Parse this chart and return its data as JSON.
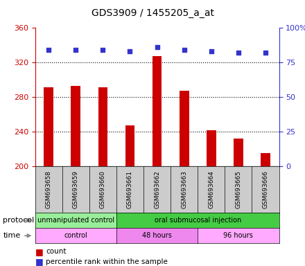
{
  "title": "GDS3909 / 1455205_a_at",
  "samples": [
    "GSM693658",
    "GSM693659",
    "GSM693660",
    "GSM693661",
    "GSM693662",
    "GSM693663",
    "GSM693664",
    "GSM693665",
    "GSM693666"
  ],
  "counts": [
    291,
    293,
    291,
    247,
    327,
    287,
    241,
    232,
    215
  ],
  "percentile_ranks": [
    84,
    84,
    84,
    83,
    86,
    84,
    83,
    82,
    82
  ],
  "ylim_left": [
    200,
    360
  ],
  "ylim_right": [
    0,
    100
  ],
  "yticks_left": [
    200,
    240,
    280,
    320,
    360
  ],
  "yticks_right": [
    0,
    25,
    50,
    75,
    100
  ],
  "bar_color": "#cc0000",
  "dot_color": "#3333cc",
  "bar_width": 0.35,
  "protocol_groups": [
    {
      "label": "unmanipulated control",
      "start": 0,
      "end": 3,
      "color": "#99ee99"
    },
    {
      "label": "oral submucosal injection",
      "start": 3,
      "end": 9,
      "color": "#44cc44"
    }
  ],
  "time_groups": [
    {
      "label": "control",
      "start": 0,
      "end": 3,
      "color": "#ffaaff"
    },
    {
      "label": "48 hours",
      "start": 3,
      "end": 6,
      "color": "#ee88ee"
    },
    {
      "label": "96 hours",
      "start": 6,
      "end": 9,
      "color": "#ffaaff"
    }
  ],
  "legend_count_label": "count",
  "legend_pct_label": "percentile rank within the sample",
  "protocol_label": "protocol",
  "time_label": "time",
  "left_axis_color": "#cc0000",
  "right_axis_color": "#3333cc",
  "grid_color": "#000000",
  "sample_box_color": "#cccccc",
  "title_fontsize": 10,
  "tick_fontsize": 8,
  "sample_fontsize": 6.5,
  "row_label_fontsize": 8,
  "row_content_fontsize": 7,
  "legend_fontsize": 7.5
}
